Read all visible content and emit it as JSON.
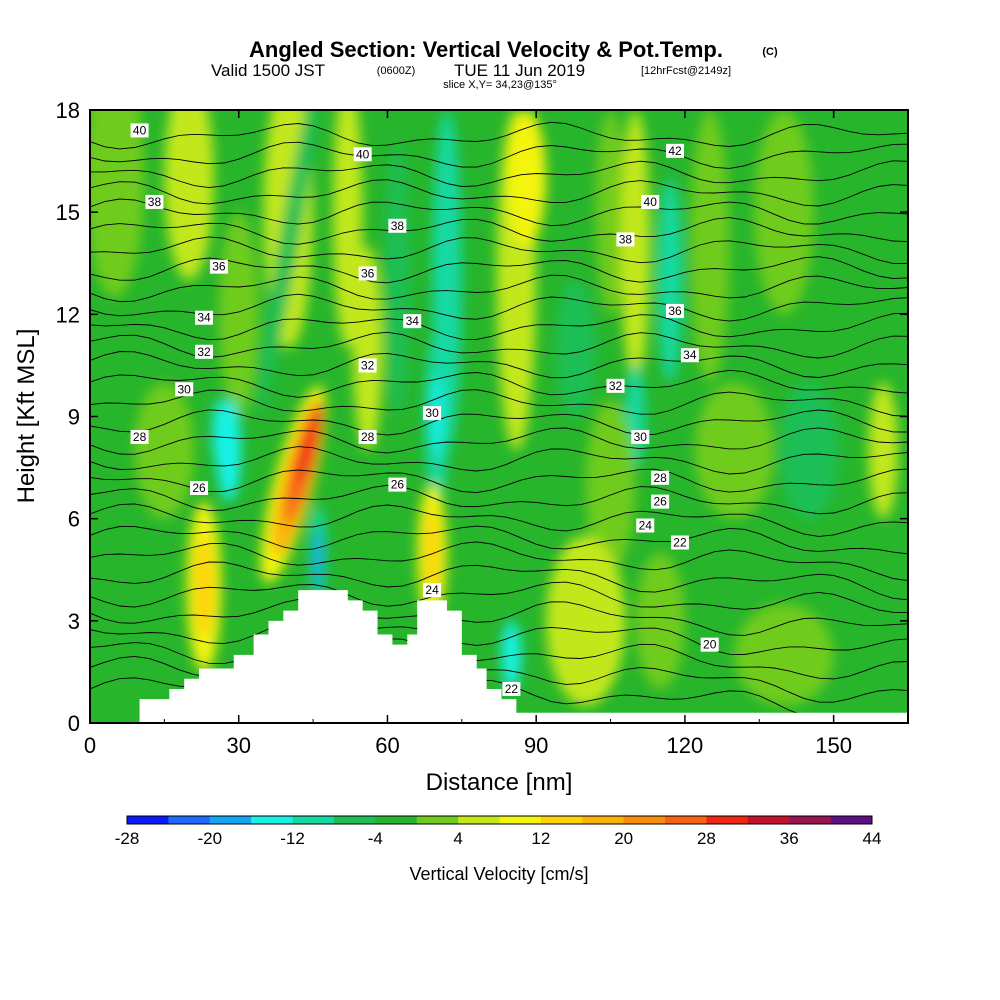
{
  "header": {
    "title": "Angled Section: Vertical Velocity & Pot.Temp.",
    "title_unit": "(C)",
    "valid_prefix": "Valid 1500 JST",
    "valid_utc": "(0600Z)",
    "valid_date": "TUE 11 Jun 2019",
    "forecast_tag": "[12hrFcst@2149z]",
    "slice": "slice X,Y= 34,23@135°"
  },
  "chart_data": {
    "type": "heatmap",
    "xlabel": "Distance [nm]",
    "ylabel": "Height [Kft MSL]",
    "xlim": [
      0,
      165
    ],
    "ylim": [
      0,
      18
    ],
    "xticks": [
      0,
      30,
      60,
      90,
      120,
      150
    ],
    "yticks": [
      0,
      3,
      6,
      9,
      12,
      15,
      18
    ],
    "colorbar": {
      "label": "Vertical Velocity [cm/s]",
      "tick_labels": [
        "-28",
        "-20",
        "-12",
        "-4",
        "4",
        "12",
        "20",
        "28",
        "36",
        "44"
      ],
      "levels": [
        -28,
        -24,
        -20,
        -16,
        -12,
        -8,
        -4,
        0,
        4,
        8,
        12,
        16,
        20,
        24,
        28,
        32,
        36,
        40,
        44
      ],
      "colors": [
        "#0a1aff",
        "#1e6bff",
        "#13a6f5",
        "#17f2e8",
        "#14d9a3",
        "#1cbf55",
        "#27b52c",
        "#6fcc1c",
        "#c2e81a",
        "#f4f40c",
        "#fcd307",
        "#fbb108",
        "#f98e0b",
        "#f76312",
        "#ee2712",
        "#c2122d",
        "#991450",
        "#5e0f86"
      ]
    },
    "theta_labels": [
      {
        "text": "40",
        "x": 10,
        "y": 17.4
      },
      {
        "text": "38",
        "x": 13,
        "y": 15.3
      },
      {
        "text": "36",
        "x": 26,
        "y": 13.4
      },
      {
        "text": "34",
        "x": 23,
        "y": 11.9
      },
      {
        "text": "32",
        "x": 23,
        "y": 10.9
      },
      {
        "text": "30",
        "x": 19,
        "y": 9.8
      },
      {
        "text": "28",
        "x": 10,
        "y": 8.4
      },
      {
        "text": "26",
        "x": 22,
        "y": 6.9
      },
      {
        "text": "40",
        "x": 55,
        "y": 16.7
      },
      {
        "text": "38",
        "x": 62,
        "y": 14.6
      },
      {
        "text": "36",
        "x": 56,
        "y": 13.2
      },
      {
        "text": "34",
        "x": 65,
        "y": 11.8
      },
      {
        "text": "32",
        "x": 56,
        "y": 10.5
      },
      {
        "text": "30",
        "x": 69,
        "y": 9.1
      },
      {
        "text": "28",
        "x": 56,
        "y": 8.4
      },
      {
        "text": "26",
        "x": 62,
        "y": 7.0
      },
      {
        "text": "24",
        "x": 69,
        "y": 3.9
      },
      {
        "text": "22",
        "x": 85,
        "y": 1.0
      },
      {
        "text": "42",
        "x": 118,
        "y": 16.8
      },
      {
        "text": "40",
        "x": 113,
        "y": 15.3
      },
      {
        "text": "38",
        "x": 108,
        "y": 14.2
      },
      {
        "text": "36",
        "x": 118,
        "y": 12.1
      },
      {
        "text": "34",
        "x": 121,
        "y": 10.8
      },
      {
        "text": "32",
        "x": 106,
        "y": 9.9
      },
      {
        "text": "30",
        "x": 111,
        "y": 8.4
      },
      {
        "text": "28",
        "x": 115,
        "y": 7.2
      },
      {
        "text": "26",
        "x": 115,
        "y": 6.5
      },
      {
        "text": "24",
        "x": 112,
        "y": 5.8
      },
      {
        "text": "22",
        "x": 119,
        "y": 5.3
      },
      {
        "text": "20",
        "x": 125,
        "y": 2.3
      }
    ],
    "terrain_heights": [
      {
        "x": 0,
        "h": 0.0
      },
      {
        "x": 10,
        "h": 0.7
      },
      {
        "x": 16,
        "h": 1.0
      },
      {
        "x": 19,
        "h": 1.3
      },
      {
        "x": 22,
        "h": 1.6
      },
      {
        "x": 29,
        "h": 2.0
      },
      {
        "x": 33,
        "h": 2.6
      },
      {
        "x": 36,
        "h": 3.0
      },
      {
        "x": 39,
        "h": 3.3
      },
      {
        "x": 42,
        "h": 3.9
      },
      {
        "x": 52,
        "h": 3.6
      },
      {
        "x": 55,
        "h": 3.3
      },
      {
        "x": 58,
        "h": 2.6
      },
      {
        "x": 61,
        "h": 2.3
      },
      {
        "x": 64,
        "h": 2.6
      },
      {
        "x": 66,
        "h": 3.6
      },
      {
        "x": 72,
        "h": 3.3
      },
      {
        "x": 75,
        "h": 2.0
      },
      {
        "x": 78,
        "h": 1.6
      },
      {
        "x": 80,
        "h": 1.0
      },
      {
        "x": 83,
        "h": 0.7
      },
      {
        "x": 86,
        "h": 0.3
      },
      {
        "x": 165,
        "h": 0.3
      }
    ]
  }
}
